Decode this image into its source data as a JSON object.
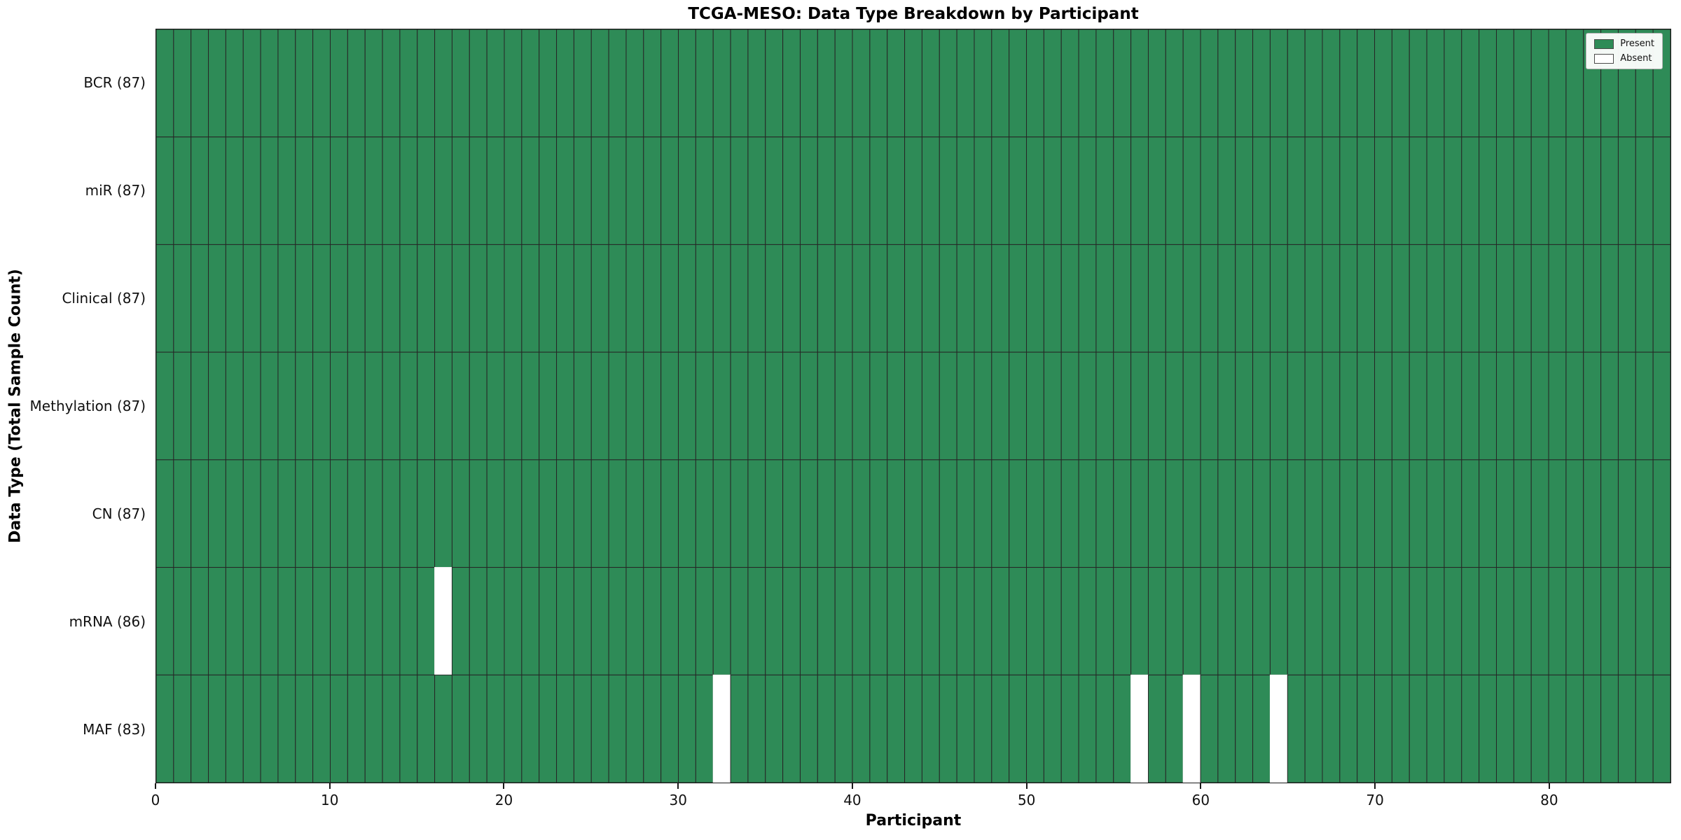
{
  "chart_data": {
    "type": "heatmap",
    "title": "TCGA-MESO: Data Type Breakdown by Participant",
    "xlabel": "Participant",
    "ylabel": "Data Type (Total Sample Count)",
    "n_participants": 87,
    "x_ticks": [
      0,
      10,
      20,
      30,
      40,
      50,
      60,
      70,
      80
    ],
    "rows": [
      {
        "label": "BCR (87)",
        "count": 87,
        "absent": []
      },
      {
        "label": "miR (87)",
        "count": 87,
        "absent": []
      },
      {
        "label": "Clinical (87)",
        "count": 87,
        "absent": []
      },
      {
        "label": "Methylation (87)",
        "count": 87,
        "absent": []
      },
      {
        "label": "CN (87)",
        "count": 87,
        "absent": []
      },
      {
        "label": "mRNA (86)",
        "count": 86,
        "absent": [
          16
        ]
      },
      {
        "label": "MAF (83)",
        "count": 83,
        "absent": [
          32,
          56,
          59,
          64
        ]
      }
    ],
    "legend": [
      {
        "label": "Present",
        "color": "#2e8b57"
      },
      {
        "label": "Absent",
        "color": "#ffffff"
      }
    ],
    "colors": {
      "present": "#2e8b57",
      "absent": "#ffffff",
      "grid": "#262626",
      "spine": "#1a1a1a"
    },
    "legend_position": "upper right",
    "grid": "on"
  }
}
